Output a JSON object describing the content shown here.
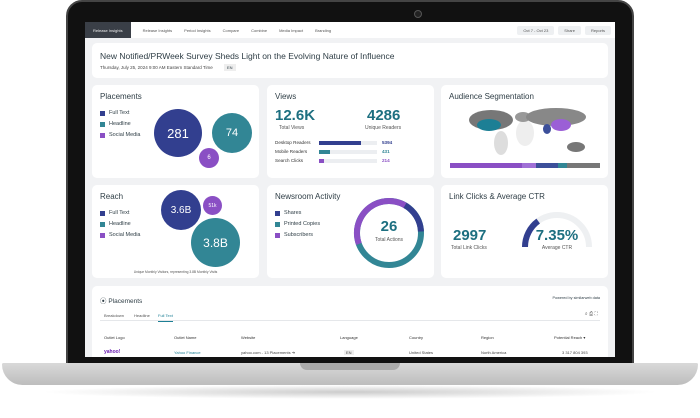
{
  "nav": {
    "home": "Release Insights",
    "items": [
      "Release Insights",
      "Period Insights",
      "Compare",
      "Combine",
      "Media Impact",
      "Branding"
    ],
    "date_range": "Oct 7 - Oct 23",
    "share": "Share",
    "reports": "Reports"
  },
  "header": {
    "title": "New Notified/PRWeek Survey Sheds Light on the Evolving Nature of Influence",
    "date": "Thursday, July 25, 2024 9:00 AM Eastern Standard Time",
    "lang": "EN"
  },
  "colors": {
    "full_text": "#323f8f",
    "headline": "#328695",
    "social_media": "#8a4fc4"
  },
  "placements": {
    "title": "Placements",
    "legend": [
      "Full Text",
      "Headline",
      "Social Media"
    ],
    "values": [
      "281",
      "74",
      "6"
    ]
  },
  "views": {
    "title": "Views",
    "total": "12.6K",
    "total_label": "Total Views",
    "unique": "4286",
    "unique_label": "Unique Readers",
    "bars": [
      {
        "label": "Desktop Readers",
        "value": "5394",
        "fill": 0.72
      },
      {
        "label": "Mobile Readers",
        "value": "431",
        "fill": 0.19
      },
      {
        "label": "Search Clicks",
        "value": "214",
        "fill": 0.09
      }
    ]
  },
  "audience": {
    "title": "Audience Segmentation"
  },
  "reach": {
    "title": "Reach",
    "legend": [
      "Full Text",
      "Headline",
      "Social Media"
    ],
    "values": [
      "3.6B",
      "3.8B",
      "51k"
    ],
    "footnote": "Unique Monthly Visitors, representing 3.8B Monthly Visits"
  },
  "newsroom": {
    "title": "Newsroom Activity",
    "legend": [
      "Shares",
      "Printed Copies",
      "Subscribers"
    ],
    "total": "26",
    "total_label": "Total Actions"
  },
  "ctr": {
    "title": "Link Clicks & Average CTR",
    "clicks": "2997",
    "clicks_label": "Total Link Clicks",
    "ctr": "7.35%",
    "ctr_label": "Average CTR",
    "gauge_fill": 0.3
  },
  "table": {
    "title": "Placements",
    "powered": "Powered by similarweb data",
    "tabs": [
      "Breakdown",
      "Headline",
      "Full Text"
    ],
    "headers": [
      "Outlet Logo",
      "Outlet Name",
      "Website",
      "Language",
      "Country",
      "Region",
      "Potential Reach"
    ],
    "rows": [
      {
        "logo": "yahoo!",
        "name": "Yahoo Finance",
        "website": "yahoo.com - 13 Placements",
        "language": "EN",
        "country": "United States",
        "region": "North America",
        "reach": "3 317 804 393"
      }
    ]
  }
}
